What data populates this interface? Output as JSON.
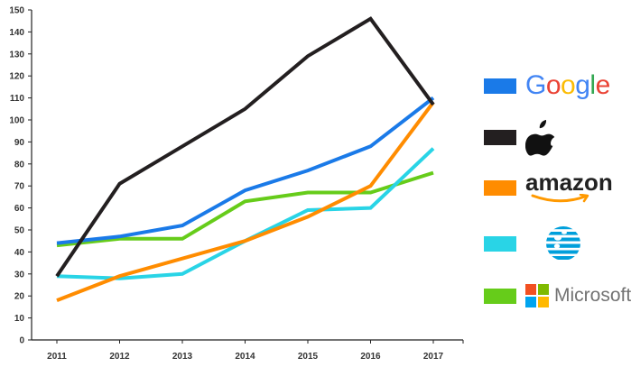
{
  "chart_data": {
    "type": "line",
    "x": [
      "2011",
      "2012",
      "2013",
      "2014",
      "2015",
      "2016",
      "2017"
    ],
    "ylim": [
      0,
      150
    ],
    "yticks": [
      0,
      10,
      20,
      30,
      40,
      50,
      60,
      70,
      80,
      90,
      100,
      110,
      120,
      130,
      140,
      150
    ],
    "grid": false,
    "legend_position": "right",
    "series": [
      {
        "key": "google",
        "color": "#1a7ae8",
        "values": [
          44,
          47,
          52,
          68,
          77,
          88,
          110
        ]
      },
      {
        "key": "apple",
        "color": "#231f20",
        "values": [
          29,
          71,
          88,
          105,
          129,
          146,
          107
        ]
      },
      {
        "key": "amazon",
        "color": "#ff8c00",
        "values": [
          18,
          29,
          37,
          45,
          56,
          70,
          108
        ]
      },
      {
        "key": "att",
        "color": "#29d4e6",
        "values": [
          29,
          28,
          30,
          45,
          59,
          60,
          87
        ]
      },
      {
        "key": "microsoft",
        "color": "#66cc1a",
        "values": [
          43,
          46,
          46,
          63,
          67,
          67,
          76
        ]
      }
    ]
  },
  "legend": {
    "google": {
      "logo_text": "Google",
      "icon": "google-logo"
    },
    "apple": {
      "icon": "apple-logo"
    },
    "amazon": {
      "logo_text": "amazon",
      "icon": "amazon-logo"
    },
    "att": {
      "icon": "att-globe-logo"
    },
    "microsoft": {
      "logo_text": "Microsoft",
      "icon": "microsoft-logo"
    }
  }
}
